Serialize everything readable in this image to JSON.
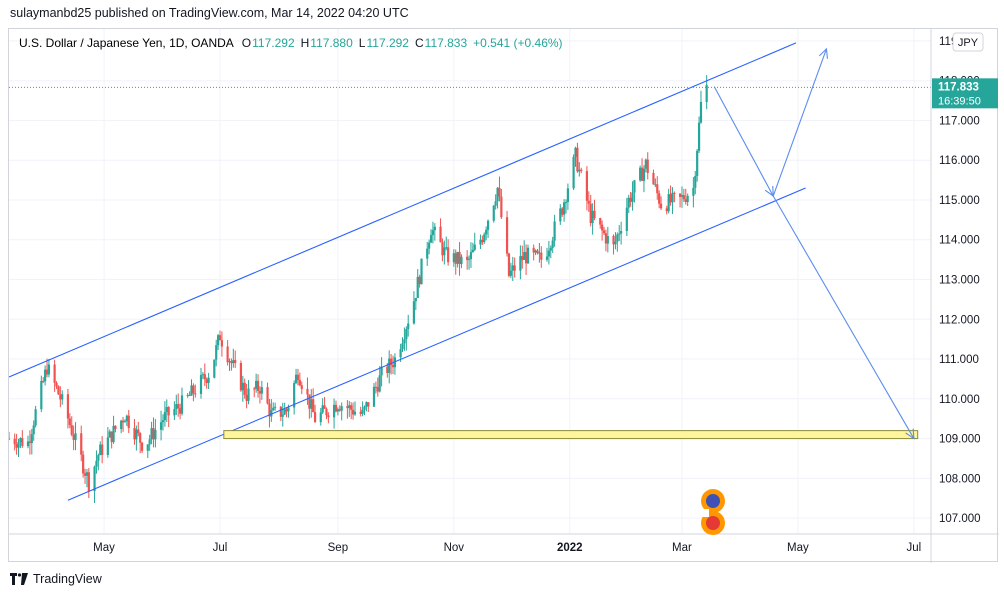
{
  "header": {
    "published": "sulaymanbd25 published on TradingView.com, Mar 14, 2022 04:20 UTC"
  },
  "legend": {
    "symbol": "U.S. Dollar / Japanese Yen, 1D, OANDA",
    "open_label": "O",
    "open": "117.292",
    "high_label": "H",
    "high": "117.880",
    "low_label": "L",
    "low": "117.292",
    "close_label": "C",
    "close": "117.833",
    "change": "+0.541 (+0.46%)"
  },
  "currency_badge": "JPY",
  "price_tag": {
    "price": "117.833",
    "countdown": "16:39:50"
  },
  "footer": {
    "brand": "TradingView"
  },
  "colors": {
    "up": "#26a69a",
    "down": "#ef5350",
    "drawing": "#2962ff",
    "zone_fill": "#fff59d",
    "zone_border": "#8b8b3a",
    "grid": "#f0f3fa",
    "price_tag": "#26a69a",
    "axis_text": "#131722"
  },
  "icons": {
    "logo": "tradingview-logo-icon",
    "watermark": "number-3-flag-watermark-icon"
  },
  "chart_data": {
    "type": "candlestick",
    "y_axis": {
      "ticks": [
        "107.000",
        "108.000",
        "109.000",
        "110.000",
        "111.000",
        "112.000",
        "113.000",
        "114.000",
        "115.000",
        "116.000",
        "117.000",
        "118.000",
        "119.000"
      ],
      "range": [
        106.6,
        119.3
      ]
    },
    "x_axis": {
      "ticks": [
        "May",
        "Jul",
        "Sep",
        "Nov",
        "2022",
        "Mar",
        "May",
        "Jul"
      ],
      "range": [
        "2021-03-12",
        "2022-07-10"
      ]
    },
    "series_path": [
      [
        "2021-03-12",
        109.0
      ],
      [
        "2021-03-22",
        108.9
      ],
      [
        "2021-04-01",
        110.8
      ],
      [
        "2021-04-10",
        109.8
      ],
      [
        "2021-04-23",
        107.9
      ],
      [
        "2021-04-28",
        108.6
      ],
      [
        "2021-05-12",
        109.6
      ],
      [
        "2021-05-22",
        108.8
      ],
      [
        "2021-06-01",
        109.5
      ],
      [
        "2021-06-12",
        109.9
      ],
      [
        "2021-06-26",
        110.7
      ],
      [
        "2021-07-01",
        111.6
      ],
      [
        "2021-07-07",
        110.9
      ],
      [
        "2021-07-15",
        110.1
      ],
      [
        "2021-07-22",
        110.3
      ],
      [
        "2021-07-28",
        109.6
      ],
      [
        "2021-08-05",
        109.7
      ],
      [
        "2021-08-11",
        110.7
      ],
      [
        "2021-08-20",
        109.5
      ],
      [
        "2021-09-01",
        109.9
      ],
      [
        "2021-09-14",
        109.6
      ],
      [
        "2021-09-24",
        110.6
      ],
      [
        "2021-10-01",
        111.0
      ],
      [
        "2021-10-10",
        112.3
      ],
      [
        "2021-10-20",
        114.3
      ],
      [
        "2021-10-28",
        113.6
      ],
      [
        "2021-11-08",
        113.4
      ],
      [
        "2021-11-16",
        114.1
      ],
      [
        "2021-11-24",
        115.3
      ],
      [
        "2021-11-30",
        113.1
      ],
      [
        "2021-12-08",
        113.6
      ],
      [
        "2021-12-18",
        113.5
      ],
      [
        "2021-12-28",
        114.8
      ],
      [
        "2022-01-04",
        116.1
      ],
      [
        "2022-01-12",
        114.6
      ],
      [
        "2022-01-24",
        113.8
      ],
      [
        "2022-02-01",
        115.0
      ],
      [
        "2022-02-10",
        115.9
      ],
      [
        "2022-02-18",
        114.9
      ],
      [
        "2022-02-28",
        115.0
      ],
      [
        "2022-03-07",
        115.3
      ],
      [
        "2022-03-11",
        117.4
      ],
      [
        "2022-03-14",
        117.833
      ]
    ],
    "annotations": {
      "channel_upper": [
        [
          "2021-03-12",
          110.55
        ],
        [
          "2022-04-30",
          118.95
        ]
      ],
      "channel_lower": [
        [
          "2021-04-12",
          107.45
        ],
        [
          "2022-05-05",
          115.3
        ]
      ],
      "support_zone": {
        "x": [
          "2021-07-03",
          "2022-07-03"
        ],
        "y": [
          109.0,
          109.2
        ]
      },
      "projection_path": [
        [
          "2022-03-18",
          117.85
        ],
        [
          "2022-04-18",
          115.1
        ],
        [
          "2022-05-16",
          118.8
        ]
      ],
      "target_path": [
        [
          "2022-04-18",
          115.1
        ],
        [
          "2022-07-01",
          109.0
        ]
      ],
      "last_price_line": 117.833
    }
  }
}
